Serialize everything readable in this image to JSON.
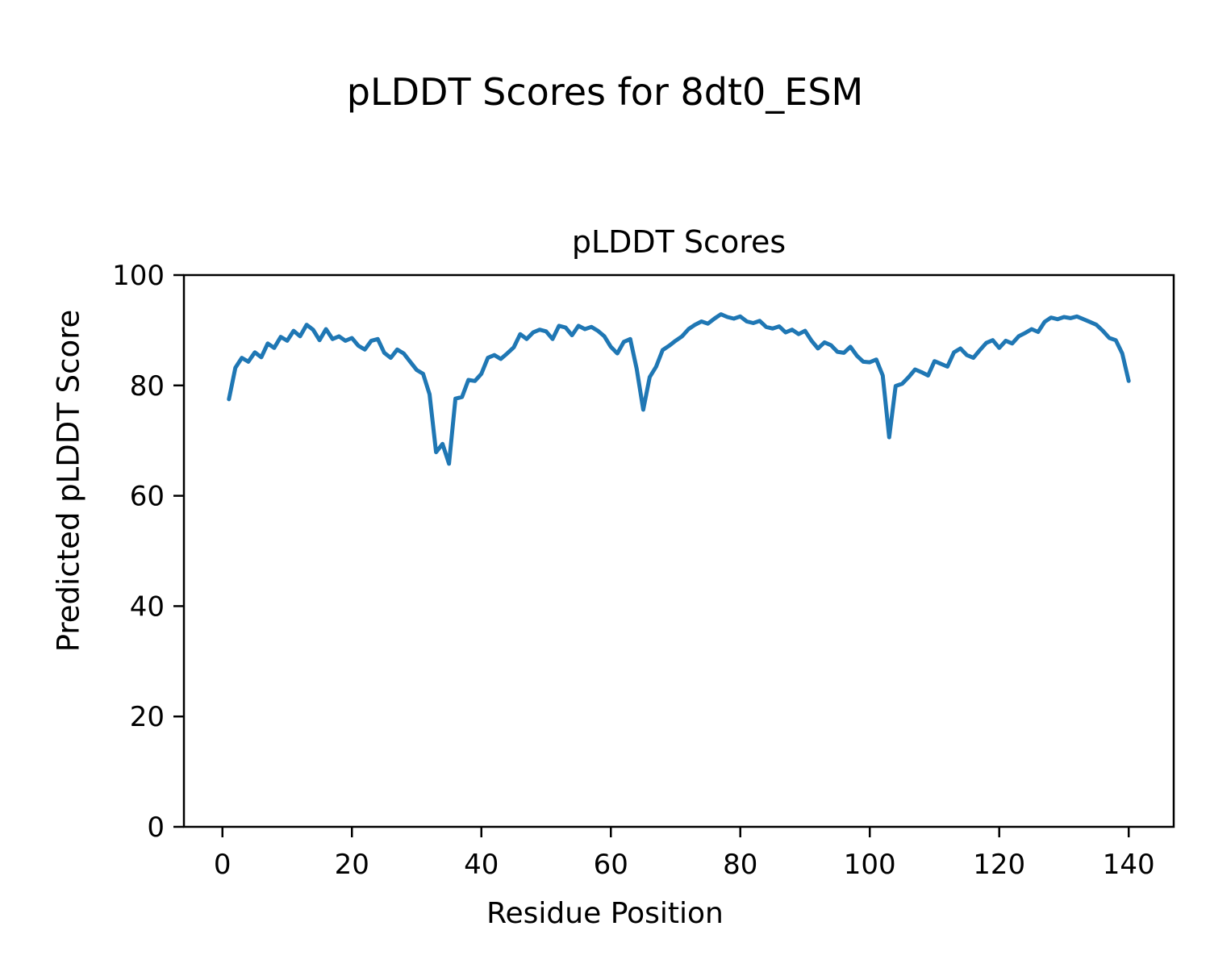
{
  "figure": {
    "suptitle": "pLDDT Scores for 8dt0_ESM",
    "axes_title": "pLDDT Scores",
    "xlabel": "Residue Position",
    "ylabel": "Predicted pLDDT Score"
  },
  "chart_data": {
    "type": "line",
    "title": "pLDDT Scores",
    "suptitle": "pLDDT Scores for 8dt0_ESM",
    "xlabel": "Residue Position",
    "ylabel": "Predicted pLDDT Score",
    "xlim": [
      -5.95,
      146.95
    ],
    "ylim": [
      0,
      100
    ],
    "x_ticks": [
      0,
      20,
      40,
      60,
      80,
      100,
      120,
      140
    ],
    "y_ticks": [
      0,
      20,
      40,
      60,
      80,
      100
    ],
    "grid": false,
    "legend_position": "none",
    "line_color": "#1f77b4",
    "line_width": 5,
    "axis_color": "#000000",
    "series": [
      {
        "name": "pLDDT",
        "x_start": 1,
        "x_step": 1,
        "values": [
          77.5,
          83.2,
          85.0,
          84.3,
          86.0,
          85.1,
          87.6,
          86.8,
          88.8,
          88.1,
          89.9,
          88.9,
          91.0,
          90.1,
          88.2,
          90.2,
          88.4,
          88.9,
          88.1,
          88.6,
          87.2,
          86.5,
          88.1,
          88.4,
          85.9,
          85.0,
          86.5,
          85.8,
          84.3,
          82.8,
          82.1,
          78.4,
          67.9,
          69.4,
          65.8,
          77.6,
          77.9,
          81.0,
          80.8,
          82.1,
          85.0,
          85.5,
          84.8,
          85.8,
          86.9,
          89.3,
          88.4,
          89.6,
          90.1,
          89.8,
          88.4,
          90.8,
          90.5,
          89.1,
          90.8,
          90.2,
          90.6,
          89.9,
          88.9,
          87.0,
          85.8,
          87.9,
          88.4,
          83.0,
          75.6,
          81.5,
          83.4,
          86.4,
          87.2,
          88.1,
          88.9,
          90.2,
          91.0,
          91.6,
          91.2,
          92.1,
          92.9,
          92.4,
          92.1,
          92.5,
          91.6,
          91.3,
          91.7,
          90.6,
          90.3,
          90.7,
          89.6,
          90.1,
          89.3,
          89.9,
          88.1,
          86.7,
          87.8,
          87.3,
          86.1,
          85.9,
          87.0,
          85.4,
          84.3,
          84.2,
          84.7,
          81.8,
          70.6,
          79.9,
          80.3,
          81.5,
          82.9,
          82.4,
          81.8,
          84.4,
          83.9,
          83.4,
          86.0,
          86.7,
          85.5,
          85.0,
          86.4,
          87.7,
          88.2,
          86.8,
          88.1,
          87.6,
          88.9,
          89.5,
          90.2,
          89.7,
          91.5,
          92.3,
          92.0,
          92.4,
          92.2,
          92.5,
          92.0,
          91.5,
          91.0,
          89.9,
          88.6,
          88.2,
          85.8,
          80.8
        ]
      }
    ]
  }
}
